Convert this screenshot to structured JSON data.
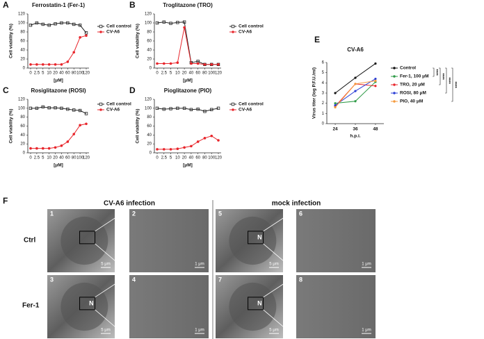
{
  "chart_data": [
    {
      "type": "line",
      "panel": "A",
      "title": "Ferrostatin-1 (Fer-1)",
      "x_label": "[μM]",
      "y_label": "Cell viability (%)",
      "categories": [
        "0",
        "2.5",
        "5",
        "10",
        "20",
        "40",
        "60",
        "80",
        "100",
        "120"
      ],
      "ylim": [
        0,
        120
      ],
      "yticks": [
        0,
        20,
        40,
        60,
        80,
        100,
        120
      ],
      "series": [
        {
          "name": "Cell control",
          "color": "#222222",
          "marker": "square",
          "values": [
            95,
            100,
            97,
            95,
            98,
            100,
            100,
            97,
            95,
            78
          ]
        },
        {
          "name": "CV-A6",
          "color": "#e8252b",
          "marker": "circle",
          "values": [
            8,
            8,
            8,
            8,
            8,
            8,
            14,
            35,
            68,
            72
          ]
        }
      ]
    },
    {
      "type": "line",
      "panel": "B",
      "title": "Troglitazone (TRO)",
      "x_label": "[μM]",
      "y_label": "Cell viability (%)",
      "categories": [
        "0",
        "2.5",
        "5",
        "10",
        "20",
        "40",
        "60",
        "80",
        "100",
        "120"
      ],
      "ylim": [
        0,
        120
      ],
      "yticks": [
        0,
        20,
        40,
        60,
        80,
        100,
        120
      ],
      "series": [
        {
          "name": "Cell control",
          "color": "#222222",
          "marker": "square",
          "values": [
            100,
            102,
            99,
            101,
            102,
            12,
            15,
            8,
            8,
            8
          ]
        },
        {
          "name": "CV-A6",
          "color": "#e8252b",
          "marker": "circle",
          "values": [
            10,
            10,
            10,
            12,
            90,
            10,
            10,
            8,
            8,
            8
          ]
        }
      ]
    },
    {
      "type": "line",
      "panel": "C",
      "title": "Rosiglitazone (ROSI)",
      "x_label": "[μM]",
      "y_label": "Cell viability (%)",
      "categories": [
        "0",
        "2.5",
        "5",
        "10",
        "20",
        "40",
        "60",
        "80",
        "100",
        "120"
      ],
      "ylim": [
        0,
        120
      ],
      "yticks": [
        0,
        20,
        40,
        60,
        80,
        100,
        120
      ],
      "series": [
        {
          "name": "Cell control",
          "color": "#222222",
          "marker": "square",
          "values": [
            100,
            100,
            103,
            101,
            101,
            100,
            98,
            96,
            95,
            88
          ]
        },
        {
          "name": "CV-A6",
          "color": "#e8252b",
          "marker": "circle",
          "values": [
            10,
            10,
            10,
            10,
            12,
            16,
            25,
            42,
            62,
            65
          ]
        }
      ]
    },
    {
      "type": "line",
      "panel": "D",
      "title": "Pioglitazone (PIO)",
      "x_label": "[μM]",
      "y_label": "Cell viability (%)",
      "categories": [
        "0",
        "2.5",
        "5",
        "10",
        "20",
        "40",
        "60",
        "80",
        "100",
        "120"
      ],
      "ylim": [
        0,
        120
      ],
      "yticks": [
        0,
        20,
        40,
        60,
        80,
        100,
        120
      ],
      "series": [
        {
          "name": "Cell control",
          "color": "#222222",
          "marker": "square",
          "values": [
            100,
            98,
            99,
            100,
            100,
            97,
            98,
            93,
            97,
            100
          ]
        },
        {
          "name": "CV-A6",
          "color": "#e8252b",
          "marker": "circle",
          "values": [
            8,
            8,
            8,
            9,
            12,
            15,
            25,
            33,
            38,
            28
          ]
        }
      ]
    },
    {
      "type": "line",
      "panel": "E",
      "title": "CV-A6",
      "x_label": "h.p.i.",
      "y_label": "Virus titer (log P.F.U./ml)",
      "x": [
        24,
        36,
        48
      ],
      "xlim": [
        19,
        53
      ],
      "xticks": [
        24,
        36,
        48
      ],
      "ylim": [
        0,
        6
      ],
      "yticks": [
        0,
        1,
        2,
        3,
        4,
        5,
        6
      ],
      "significance": [
        "****",
        "****",
        "****",
        "****"
      ],
      "series": [
        {
          "name": "Control",
          "color": "#111111",
          "marker": "dot",
          "values": [
            3.0,
            4.5,
            5.9
          ]
        },
        {
          "name": "Fer-1, 100 μM",
          "color": "#2e9a46",
          "marker": "dot",
          "values": [
            2.0,
            2.2,
            4.1
          ]
        },
        {
          "name": "TRO, 20 μM",
          "color": "#e8252b",
          "marker": "dot",
          "values": [
            1.7,
            3.9,
            3.7
          ]
        },
        {
          "name": "ROSI, 80 μM",
          "color": "#2b3fd6",
          "marker": "dot",
          "values": [
            1.8,
            3.2,
            4.4
          ]
        },
        {
          "name": "PIO, 40 μM",
          "color": "#f59a3c",
          "marker": "dot",
          "values": [
            1.6,
            3.9,
            4.2
          ]
        }
      ]
    }
  ],
  "panel_f": {
    "panel": "F",
    "groups": [
      "CV-A6 infection",
      "mock infection"
    ],
    "rows": [
      "Ctrl",
      "Fer-1"
    ],
    "images": [
      {
        "number": "1",
        "scale": "5 μm"
      },
      {
        "number": "2",
        "scale": "1 μm"
      },
      {
        "number": "3",
        "scale": "5 μm",
        "label": "N"
      },
      {
        "number": "4",
        "scale": "1 μm"
      },
      {
        "number": "5",
        "scale": "5 μm",
        "label": "N"
      },
      {
        "number": "6",
        "scale": "1 μm"
      },
      {
        "number": "7",
        "scale": "5 μm",
        "label": "N"
      },
      {
        "number": "8",
        "scale": "1 μm"
      }
    ]
  }
}
